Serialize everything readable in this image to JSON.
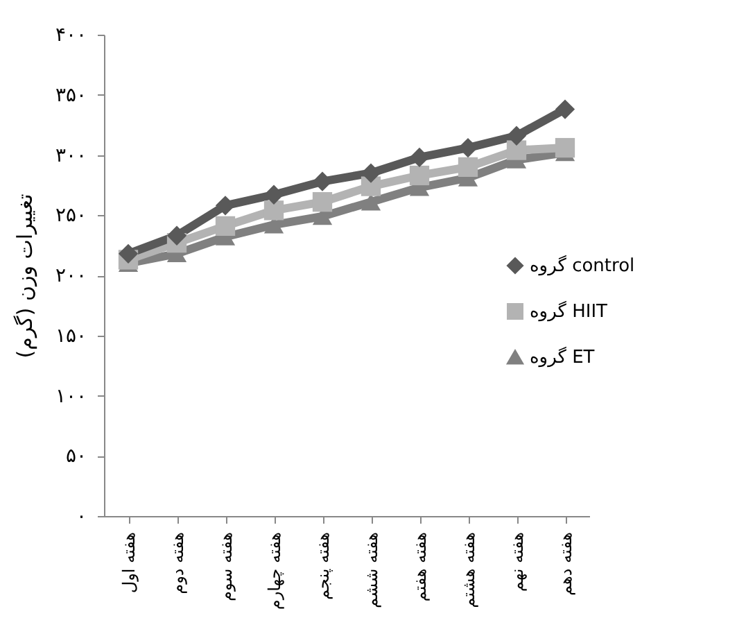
{
  "chart_data": {
    "type": "line",
    "ylabel": "تغییرات وزن (گرم)",
    "categories": [
      "هفته اول",
      "هفته دوم",
      "هفته سوم",
      "هفته چهارم",
      "هفته پنجم",
      "هفته ششم",
      "هفته هفتم",
      "هفته هشتم",
      "هفته نهم",
      "هفته دهم"
    ],
    "series": [
      {
        "name": "گروه control",
        "color": "#595959",
        "marker": "diamond",
        "values": [
          218,
          233,
          258,
          267,
          278,
          285,
          298,
          306,
          316,
          338
        ]
      },
      {
        "name": "گروه HIIT",
        "color": "#b3b3b3",
        "marker": "square",
        "values": [
          213,
          227,
          241,
          254,
          261,
          274,
          283,
          290,
          304,
          306
        ]
      },
      {
        "name": "گروه ET",
        "color": "#808080",
        "marker": "triangle",
        "values": [
          210,
          218,
          232,
          242,
          249,
          261,
          273,
          281,
          296,
          302
        ]
      }
    ],
    "ylim": [
      0,
      400
    ],
    "yticks": [
      {
        "value": 0,
        "label": "۰"
      },
      {
        "value": 50,
        "label": "۵۰"
      },
      {
        "value": 100,
        "label": "۱۰۰"
      },
      {
        "value": 150,
        "label": "۱۵۰"
      },
      {
        "value": 200,
        "label": "۲۰۰"
      },
      {
        "value": 250,
        "label": "۲۵۰"
      },
      {
        "value": 300,
        "label": "۳۰۰"
      },
      {
        "value": 350,
        "label": "۳۵۰"
      },
      {
        "value": 400,
        "label": "۴۰۰"
      }
    ],
    "grid": false,
    "legend": "right",
    "line_style": "solid"
  }
}
